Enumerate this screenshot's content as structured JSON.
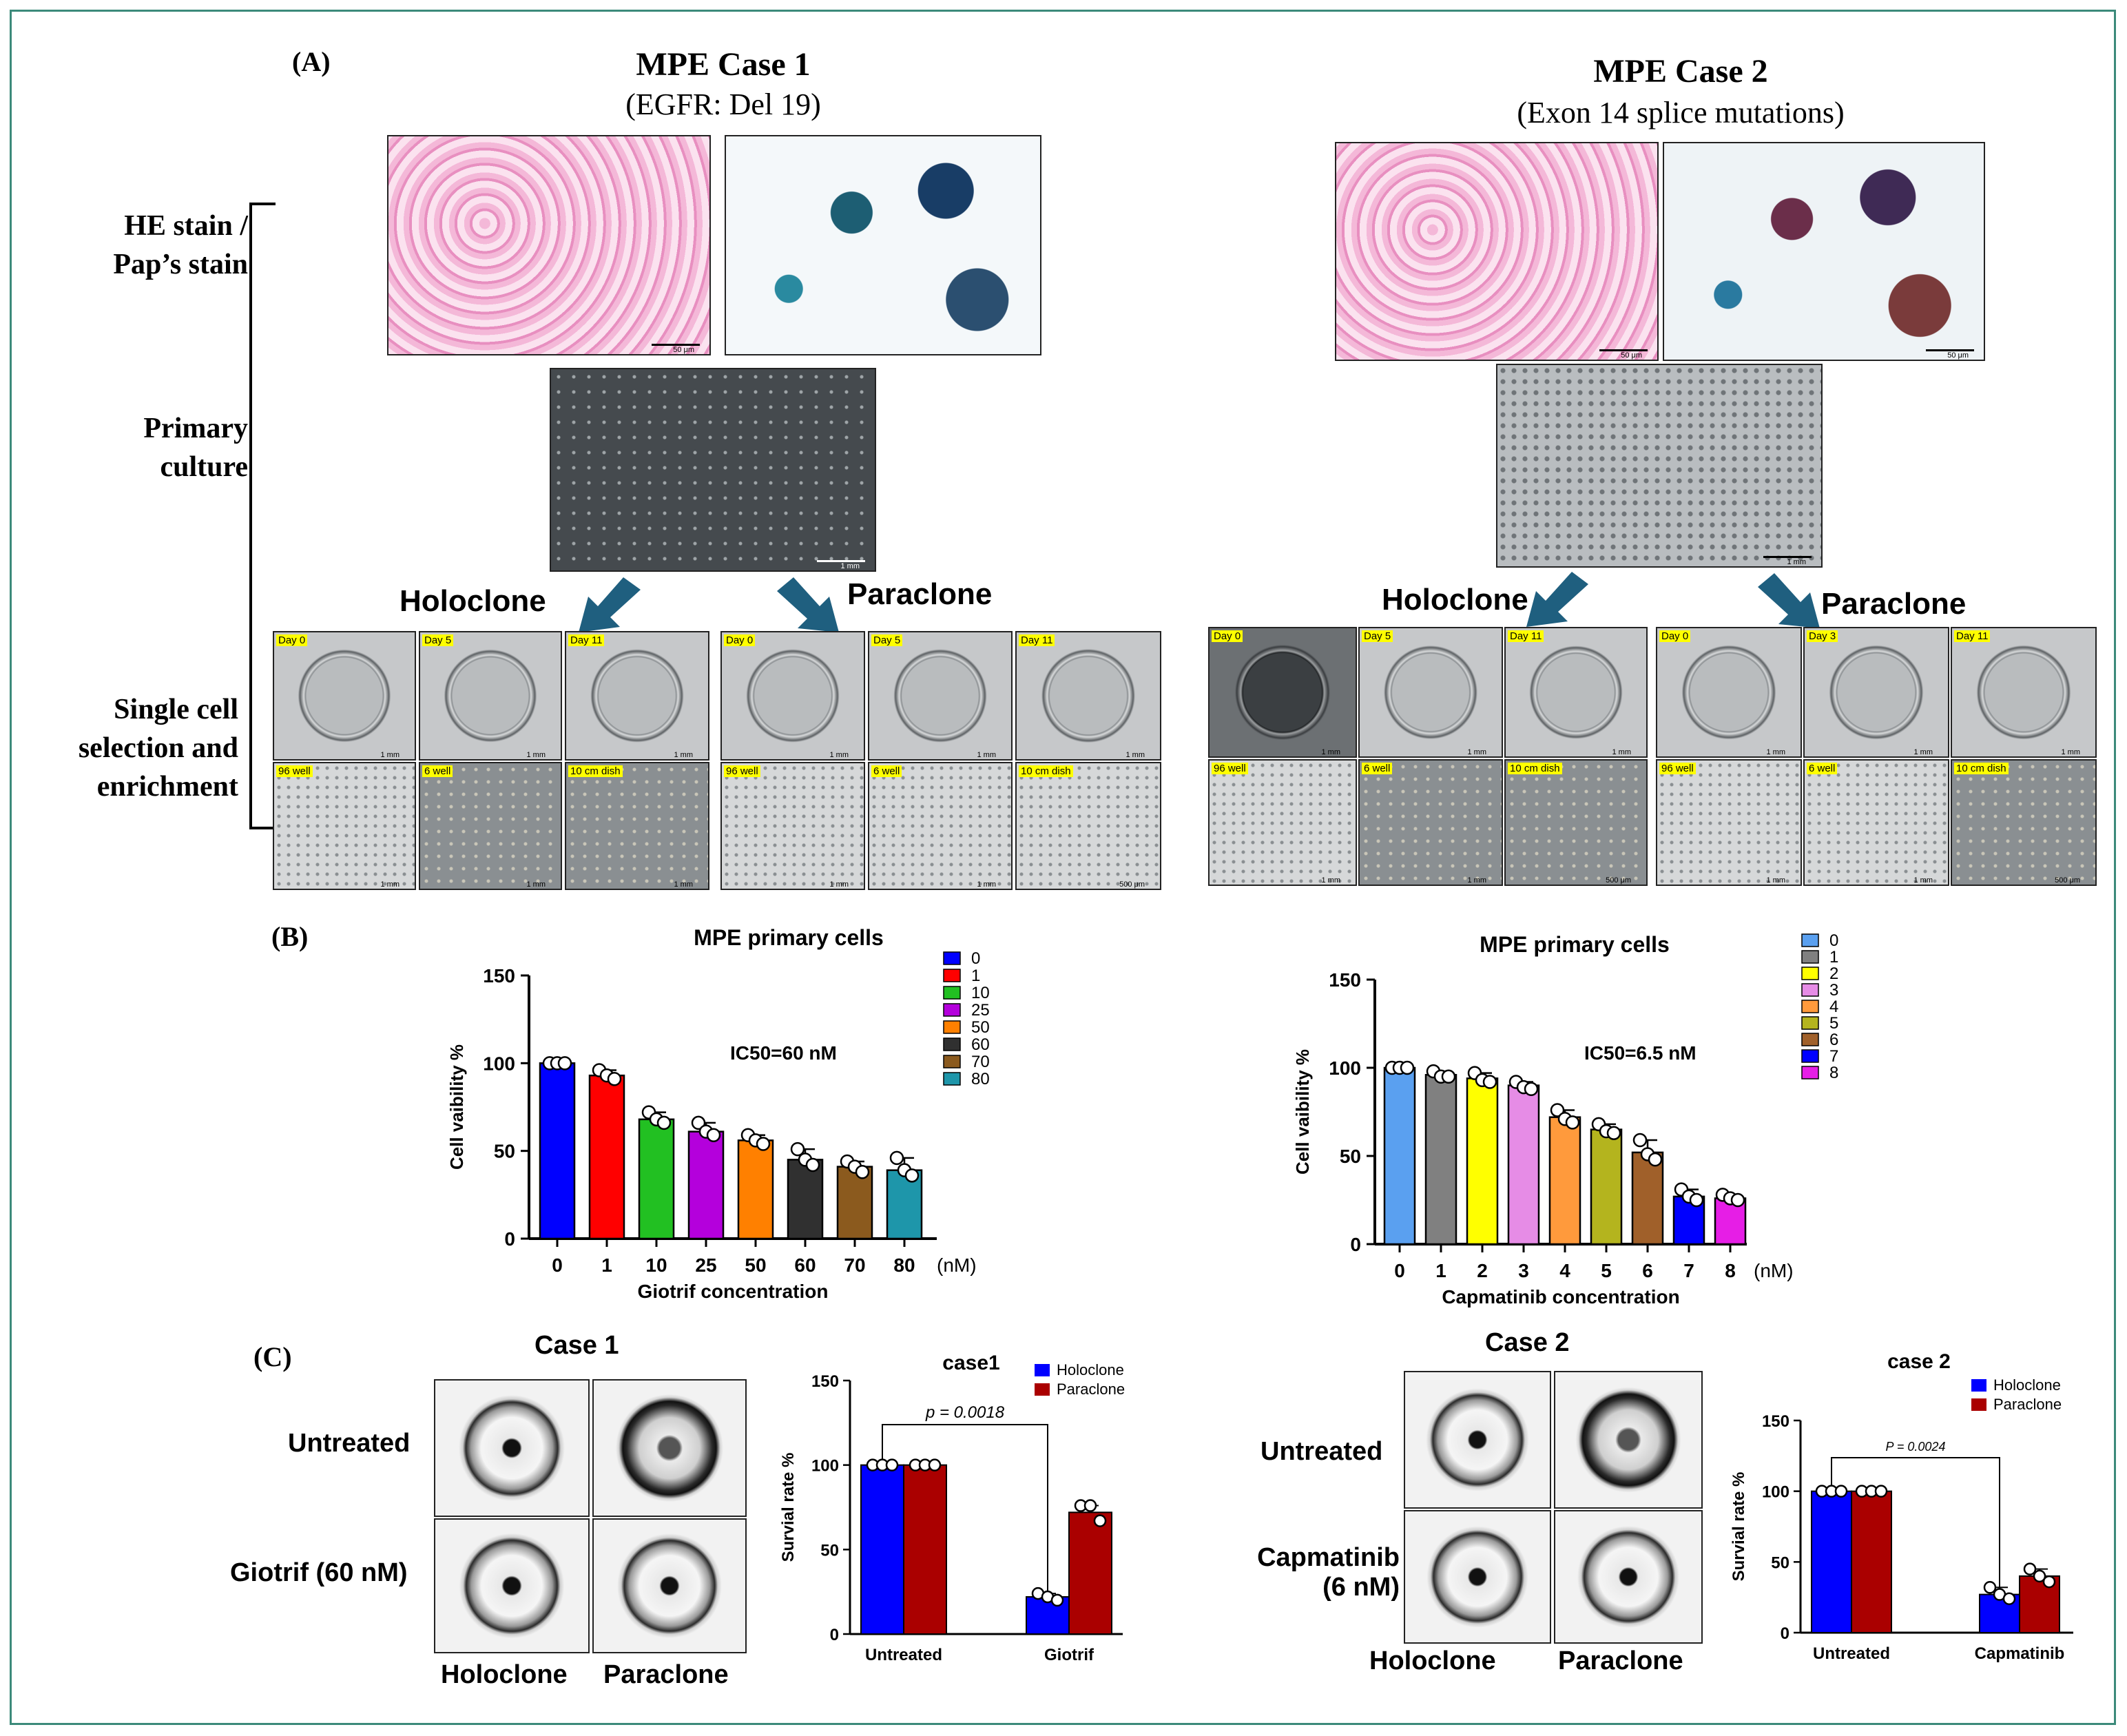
{
  "panel_A": {
    "letter": "(A)",
    "case1": {
      "title": "MPE Case 1",
      "subtitle": "(EGFR: Del 19)"
    },
    "case2": {
      "title": "MPE Case 2",
      "subtitle": "(Exon 14 splice mutations)"
    },
    "side_labels": {
      "stain_line1": "HE stain /",
      "stain_line2": "Pap’s stain",
      "primary_line1": "Primary",
      "primary_line2": "culture",
      "single_line1": "Single cell",
      "single_line2": "selection and",
      "single_line3": "enrichment"
    },
    "holoclone": "Holoclone",
    "paraclone": "Paraclone",
    "scale_50um": "50 μm",
    "scale_1mm": "1 mm",
    "scale_500um": "500 μm",
    "tags": {
      "day0": "Day 0",
      "day3": "Day 3",
      "day5": "Day 5",
      "day11": "Day 11",
      "well96": "96 well",
      "well6": "6 well",
      "dish10": "10 cm dish"
    }
  },
  "panel_B": {
    "letter": "(B)",
    "unit": "(nM)",
    "ic50_case1": "IC50=60 nM",
    "ic50_case2": "IC50=6.5 nM"
  },
  "panel_C": {
    "letter": "(C)",
    "case1_title": "Case 1",
    "case2_title": "Case 2",
    "untreated": "Untreated",
    "giotrif_60": "Giotrif (60 nM)",
    "capmatinib_line1": "Capmatinib",
    "capmatinib_line2": "(6 nM)",
    "holoclone": "Holoclone",
    "paraclone": "Paraclone",
    "pval_case1": "p = 0.0018",
    "pval_case2": "P = 0.0024"
  },
  "chart_data": [
    {
      "type": "bar",
      "title": "MPE primary cells",
      "xlabel": "Giotrif concentration",
      "ylabel": "Cell vaibility %",
      "categories": [
        "0",
        "1",
        "10",
        "25",
        "50",
        "60",
        "70",
        "80"
      ],
      "values": [
        100,
        93,
        68,
        61,
        56,
        45,
        41,
        39
      ],
      "points": [
        [
          100,
          100,
          100
        ],
        [
          96,
          93,
          91
        ],
        [
          72,
          68,
          66
        ],
        [
          66,
          61,
          59
        ],
        [
          59,
          56,
          54
        ],
        [
          51,
          45,
          42
        ],
        [
          44,
          41,
          38
        ],
        [
          46,
          39,
          36
        ]
      ],
      "colors": [
        "#0000ff",
        "#ff0000",
        "#22c022",
        "#b400dc",
        "#ff8000",
        "#303030",
        "#8b5a1e",
        "#1e96aa"
      ],
      "legend": [
        "0",
        "1",
        "10",
        "25",
        "50",
        "60",
        "70",
        "80"
      ],
      "ylim": [
        0,
        150
      ],
      "yticks": [
        "0",
        "50",
        "100",
        "150"
      ],
      "unit": "(nM)",
      "annotation": "IC50=60 nM"
    },
    {
      "type": "bar",
      "title": "MPE primary cells",
      "xlabel": "Capmatinib concentration",
      "ylabel": "Cell vaibility %",
      "categories": [
        "0",
        "1",
        "2",
        "3",
        "4",
        "5",
        "6",
        "7",
        "8"
      ],
      "values": [
        100,
        96,
        94,
        90,
        72,
        65,
        52,
        27,
        26
      ],
      "points": [
        [
          100,
          100,
          100
        ],
        [
          98,
          95,
          95
        ],
        [
          97,
          93,
          92
        ],
        [
          92,
          89,
          88
        ],
        [
          76,
          71,
          69
        ],
        [
          68,
          64,
          63
        ],
        [
          59,
          51,
          48
        ],
        [
          31,
          27,
          25
        ],
        [
          28,
          26,
          25
        ]
      ],
      "colors": [
        "#5aa0f0",
        "#808080",
        "#ffff00",
        "#e68ce6",
        "#ff9a3c",
        "#b4b41e",
        "#a0602a",
        "#0000ff",
        "#e61ee6"
      ],
      "legend": [
        "0",
        "1",
        "2",
        "3",
        "4",
        "5",
        "6",
        "7",
        "8"
      ],
      "ylim": [
        0,
        150
      ],
      "yticks": [
        "0",
        "50",
        "100",
        "150"
      ],
      "unit": "(nM)",
      "annotation": "IC50=6.5 nM"
    },
    {
      "type": "bar",
      "title": "case1",
      "xlabel": "",
      "ylabel": "Survial rate %",
      "categories": [
        "Untreated",
        "Giotrif"
      ],
      "series": [
        {
          "name": "Holoclone",
          "color": "#0000ff",
          "values": [
            100,
            22
          ],
          "points": [
            [
              100,
              100,
              100
            ],
            [
              24,
              22,
              20
            ]
          ]
        },
        {
          "name": "Paraclone",
          "color": "#aa0000",
          "values": [
            100,
            72
          ],
          "points": [
            [
              100,
              100,
              100
            ],
            [
              76,
              76,
              67
            ]
          ]
        }
      ],
      "ylim": [
        0,
        150
      ],
      "yticks": [
        "0",
        "50",
        "100",
        "150"
      ],
      "annotation": "p = 0.0018"
    },
    {
      "type": "bar",
      "title": "case 2",
      "xlabel": "",
      "ylabel": "Survial rate %",
      "categories": [
        "Untreated",
        "Capmatinib"
      ],
      "series": [
        {
          "name": "Holoclone",
          "color": "#0000ff",
          "values": [
            100,
            27
          ],
          "points": [
            [
              100,
              100,
              100
            ],
            [
              32,
              27,
              24
            ]
          ]
        },
        {
          "name": "Paraclone",
          "color": "#aa0000",
          "values": [
            100,
            40
          ],
          "points": [
            [
              100,
              100,
              100
            ],
            [
              45,
              40,
              36
            ]
          ]
        }
      ],
      "ylim": [
        0,
        150
      ],
      "yticks": [
        "0",
        "50",
        "100",
        "150"
      ],
      "annotation": "P = 0.0024"
    }
  ]
}
